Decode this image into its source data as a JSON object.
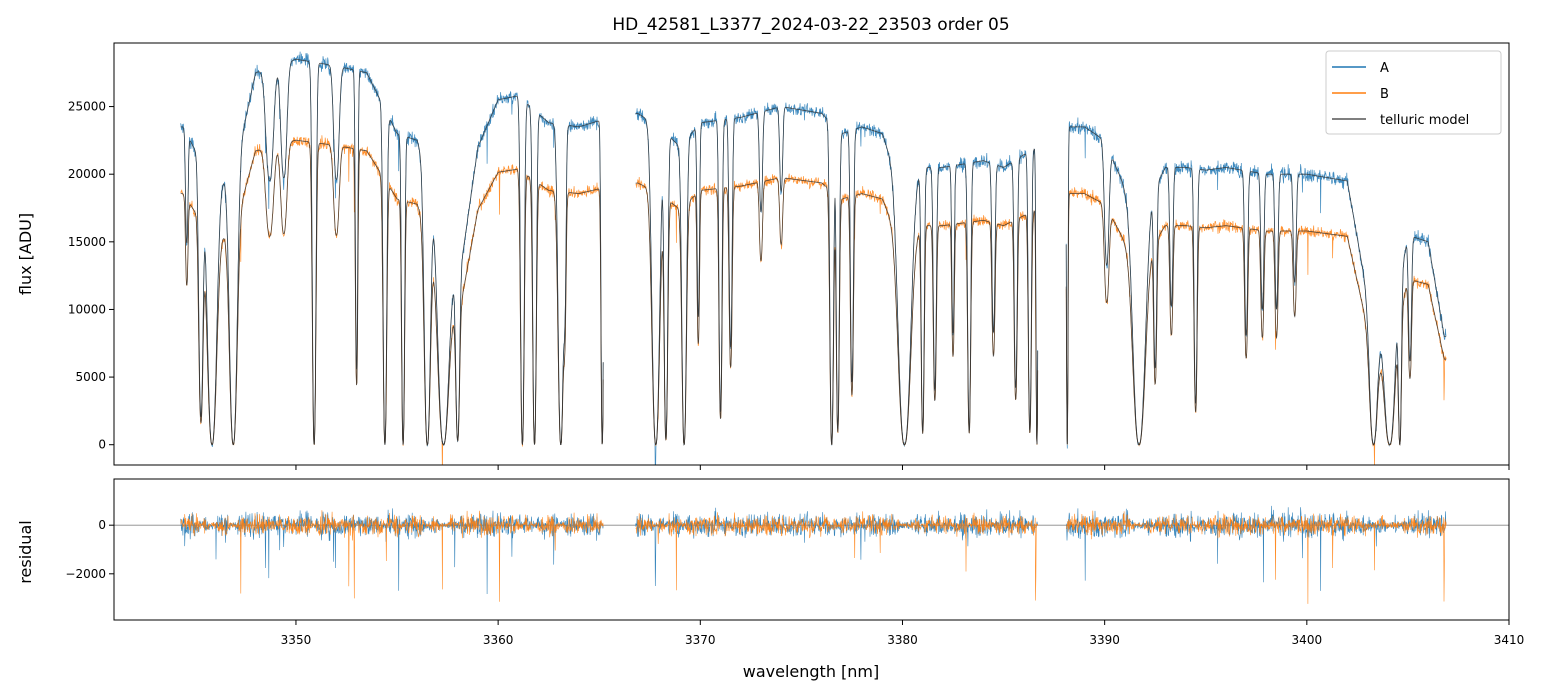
{
  "chart_data": {
    "type": "line",
    "title": "HD_42581_L3377_2024-03-22_23503  order 05",
    "xlabel": "wavelength [nm]",
    "xlim": [
      3341,
      3410
    ],
    "colors": {
      "A": "#1f77b4",
      "B": "#ff7f0e",
      "model": "#333333",
      "zero": "#888888"
    },
    "segments": [
      [
        3344.3,
        3365.2
      ],
      [
        3366.8,
        3386.7
      ],
      [
        3388.1,
        3406.9
      ]
    ],
    "x_ticks": [
      3350,
      3360,
      3370,
      3380,
      3390,
      3400,
      3410
    ],
    "x_tick_labels": [
      "3350",
      "3360",
      "3370",
      "3380",
      "3390",
      "3400",
      "3410"
    ],
    "legend": {
      "position": "upper right",
      "entries": [
        "A",
        "B",
        "telluric model"
      ]
    },
    "top_panel": {
      "ylabel": "flux [ADU]",
      "ylim": [
        -1500,
        29700
      ],
      "y_ticks": [
        0,
        5000,
        10000,
        15000,
        20000,
        25000
      ],
      "y_tick_labels": [
        "0",
        "5000",
        "10000",
        "15000",
        "20000",
        "25000"
      ],
      "continuum_A": [
        [
          3344.4,
          23500
        ],
        [
          3346,
          19000
        ],
        [
          3347,
          20500
        ],
        [
          3348,
          27500
        ],
        [
          3350,
          28500
        ],
        [
          3352,
          28000
        ],
        [
          3353.5,
          27500
        ],
        [
          3355,
          23000
        ],
        [
          3356,
          22500
        ],
        [
          3358,
          11500
        ],
        [
          3359,
          22000
        ],
        [
          3360,
          25500
        ],
        [
          3361,
          25800
        ],
        [
          3362.5,
          23800
        ],
        [
          3364,
          23500
        ],
        [
          3365.1,
          24000
        ],
        [
          3366.9,
          24500
        ],
        [
          3368,
          23500
        ],
        [
          3369,
          22000
        ],
        [
          3370,
          23800
        ],
        [
          3372,
          24200
        ],
        [
          3374,
          25000
        ],
        [
          3376,
          24500
        ],
        [
          3377,
          23000
        ],
        [
          3378,
          23500
        ],
        [
          3379,
          23000
        ],
        [
          3380,
          18500
        ],
        [
          3381,
          20500
        ],
        [
          3382,
          20500
        ],
        [
          3384,
          21000
        ],
        [
          3385,
          20500
        ],
        [
          3386.6,
          22000
        ],
        [
          3388.2,
          23500
        ],
        [
          3389,
          23500
        ],
        [
          3390,
          22500
        ],
        [
          3391,
          19000
        ],
        [
          3392,
          17500
        ],
        [
          3393,
          20500
        ],
        [
          3394,
          20500
        ],
        [
          3395,
          20300
        ],
        [
          3396,
          20500
        ],
        [
          3398,
          20000
        ],
        [
          3400,
          20000
        ],
        [
          3402,
          19500
        ],
        [
          3403,
          11000
        ],
        [
          3404,
          6500
        ],
        [
          3405,
          15500
        ],
        [
          3406,
          15000
        ],
        [
          3406.8,
          8000
        ]
      ],
      "scale_B": 0.79,
      "lines": [
        [
          3344.6,
          0.35,
          0.08
        ],
        [
          3345.3,
          0.9,
          0.14
        ],
        [
          3345.85,
          1.0,
          0.3
        ],
        [
          3346.9,
          1.0,
          0.25
        ],
        [
          3348.7,
          0.3,
          0.25
        ],
        [
          3349.4,
          0.3,
          0.2
        ],
        [
          3350.9,
          1.0,
          0.12
        ],
        [
          3352.0,
          0.3,
          0.18
        ],
        [
          3353.0,
          0.8,
          0.08
        ],
        [
          3354.4,
          1.0,
          0.12
        ],
        [
          3355.3,
          1.0,
          0.1
        ],
        [
          3356.5,
          1.0,
          0.2
        ],
        [
          3357.3,
          1.0,
          0.35
        ],
        [
          3358.0,
          0.97,
          0.12
        ],
        [
          3361.2,
          1.0,
          0.12
        ],
        [
          3361.8,
          1.0,
          0.12
        ],
        [
          3363.1,
          1.0,
          0.18
        ],
        [
          3363.3,
          0.5,
          0.08
        ],
        [
          3365.15,
          1.0,
          0.08
        ],
        [
          3367.8,
          1.0,
          0.25
        ],
        [
          3368.3,
          0.98,
          0.12
        ],
        [
          3369.2,
          1.0,
          0.15
        ],
        [
          3369.9,
          0.6,
          0.08
        ],
        [
          3371.0,
          0.9,
          0.1
        ],
        [
          3371.5,
          0.7,
          0.1
        ],
        [
          3373.0,
          0.3,
          0.1
        ],
        [
          3374.0,
          0.25,
          0.1
        ],
        [
          3376.5,
          1.0,
          0.12
        ],
        [
          3376.8,
          0.95,
          0.1
        ],
        [
          3377.5,
          0.8,
          0.1
        ],
        [
          3380.1,
          1.0,
          0.4
        ],
        [
          3381.0,
          0.95,
          0.1
        ],
        [
          3381.6,
          0.8,
          0.1
        ],
        [
          3382.5,
          0.6,
          0.08
        ],
        [
          3383.3,
          0.95,
          0.1
        ],
        [
          3384.5,
          0.6,
          0.1
        ],
        [
          3385.6,
          0.8,
          0.1
        ],
        [
          3386.3,
          0.95,
          0.1
        ],
        [
          3386.65,
          1.0,
          0.06
        ],
        [
          3388.15,
          1.0,
          0.05
        ],
        [
          3390.1,
          0.4,
          0.15
        ],
        [
          3391.7,
          1.0,
          0.4
        ],
        [
          3392.5,
          0.7,
          0.1
        ],
        [
          3393.3,
          0.5,
          0.1
        ],
        [
          3394.5,
          0.85,
          0.1
        ],
        [
          3397.0,
          0.6,
          0.1
        ],
        [
          3397.8,
          0.5,
          0.1
        ],
        [
          3398.5,
          0.5,
          0.1
        ],
        [
          3399.4,
          0.4,
          0.1
        ],
        [
          3403.3,
          1.0,
          0.25
        ],
        [
          3404.1,
          1.0,
          0.3
        ],
        [
          3404.6,
          1.0,
          0.1
        ],
        [
          3405.1,
          0.6,
          0.1
        ]
      ]
    },
    "bottom_panel": {
      "ylabel": "residual",
      "ylim": [
        -3900,
        1900
      ],
      "y_ticks": [
        -2000,
        0
      ],
      "y_tick_labels": [
        "−2000",
        "0"
      ],
      "noise_amplitude": 500
    }
  }
}
